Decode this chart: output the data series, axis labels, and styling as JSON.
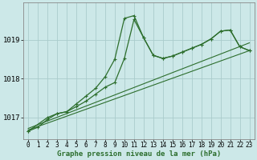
{
  "xlabel": "Graphe pression niveau de la mer (hPa)",
  "bg_color": "#cce8e8",
  "line_color": "#2d6e2d",
  "grid_color": "#aacccc",
  "spine_color": "#888888",
  "xlim": [
    -0.5,
    23.5
  ],
  "ylim": [
    1016.45,
    1019.95
  ],
  "yticks": [
    1017,
    1018,
    1019
  ],
  "xticks": [
    0,
    1,
    2,
    3,
    4,
    5,
    6,
    7,
    8,
    9,
    10,
    11,
    12,
    13,
    14,
    15,
    16,
    17,
    18,
    19,
    20,
    21,
    22,
    23
  ],
  "line1_x": [
    0,
    1,
    2,
    3,
    4,
    5,
    6,
    7,
    8,
    9,
    10,
    11,
    12,
    13,
    14,
    15,
    16,
    17,
    18,
    19,
    20,
    21,
    22,
    23
  ],
  "line1_y": [
    1016.65,
    1016.75,
    1016.95,
    1017.1,
    1017.15,
    1017.35,
    1017.55,
    1017.75,
    1018.05,
    1018.5,
    1019.55,
    1019.62,
    1019.05,
    1018.6,
    1018.52,
    1018.58,
    1018.68,
    1018.78,
    1018.88,
    1019.02,
    1019.22,
    1019.25,
    1018.82,
    1018.72
  ],
  "line2_x": [
    0,
    2,
    3,
    4,
    5,
    6,
    7,
    8,
    9,
    10,
    11,
    12,
    13,
    14,
    15,
    16,
    17,
    18,
    19,
    20,
    21,
    22,
    23
  ],
  "line2_y": [
    1016.65,
    1017.0,
    1017.1,
    1017.15,
    1017.28,
    1017.42,
    1017.6,
    1017.78,
    1017.9,
    1018.52,
    1019.52,
    1019.05,
    1018.6,
    1018.52,
    1018.58,
    1018.68,
    1018.78,
    1018.88,
    1019.02,
    1019.22,
    1019.25,
    1018.82,
    1018.72
  ],
  "trend1_x": [
    0,
    23
  ],
  "trend1_y": [
    1016.68,
    1018.72
  ],
  "trend2_x": [
    0,
    23
  ],
  "trend2_y": [
    1016.72,
    1018.92
  ],
  "xlabel_fontsize": 6.5,
  "tick_fontsize": 5.5,
  "ytick_fontsize": 6.5
}
